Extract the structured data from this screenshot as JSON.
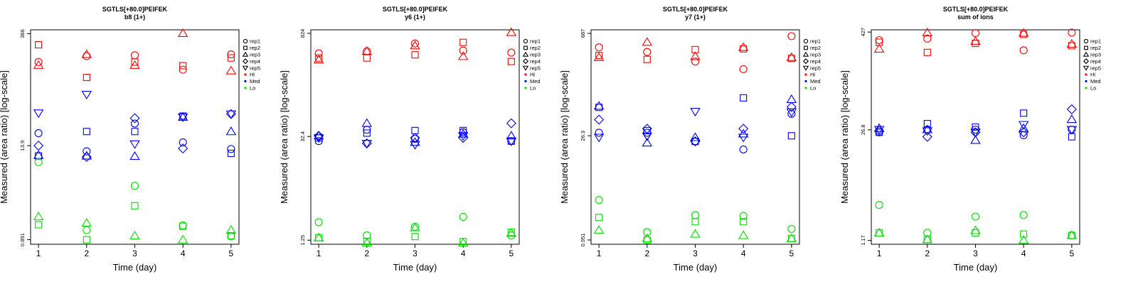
{
  "legend": {
    "shapes": [
      {
        "name": "rep1",
        "symbol": "circle"
      },
      {
        "name": "rep2",
        "symbol": "square"
      },
      {
        "name": "rep3",
        "symbol": "triangle-up"
      },
      {
        "name": "rep4",
        "symbol": "diamond"
      },
      {
        "name": "rep5",
        "symbol": "triangle-down"
      }
    ],
    "groups": [
      {
        "name": "Hi",
        "color": "#ff0000"
      },
      {
        "name": "Med",
        "color": "#0000ff"
      },
      {
        "name": "Lo",
        "color": "#00dd00"
      }
    ]
  },
  "chart_data": [
    {
      "type": "scatter",
      "title": "SGTLS[+80.0]PEIFEK",
      "subtitle": "b8 (1+)",
      "xlabel": "Time (day)",
      "ylabel": "Measured (area ratio) [log-scale]",
      "x_ticks": [
        1,
        2,
        3,
        4,
        5
      ],
      "y_scale": "log",
      "y_ticks": [
        0.891,
        13.9,
        366
      ],
      "y_tick_labels": [
        "0.891",
        "13.9",
        "366"
      ],
      "ylim": [
        0.78,
        410
      ],
      "legend_position": "right",
      "series": [
        {
          "group": "Hi",
          "shape": "rep1",
          "x": [
            1,
            2,
            3,
            4,
            5
          ],
          "y": [
            160,
            190,
            195,
            128,
            200
          ]
        },
        {
          "group": "Hi",
          "shape": "rep2",
          "x": [
            1,
            2,
            3,
            4,
            5
          ],
          "y": [
            265,
            102,
            160,
            144,
            180
          ]
        },
        {
          "group": "Hi",
          "shape": "rep3",
          "x": [
            1,
            2,
            3,
            4,
            5
          ],
          "y": [
            146,
            200,
            146,
            370,
            124
          ]
        },
        {
          "group": "Med",
          "shape": "rep1",
          "x": [
            1,
            2,
            3,
            4,
            5
          ],
          "y": [
            20,
            11.8,
            26.5,
            15.3,
            12.6
          ]
        },
        {
          "group": "Med",
          "shape": "rep2",
          "x": [
            1,
            2,
            3,
            4,
            5
          ],
          "y": [
            10.3,
            21,
            21,
            33,
            11.1
          ]
        },
        {
          "group": "Med",
          "shape": "rep3",
          "x": [
            1,
            2,
            3,
            4,
            5
          ],
          "y": [
            10.5,
            10.3,
            10.2,
            32,
            21
          ]
        },
        {
          "group": "Med",
          "shape": "rep4",
          "x": [
            1,
            2,
            3,
            4,
            5
          ],
          "y": [
            13.9,
            10.0,
            31,
            12.8,
            35
          ]
        },
        {
          "group": "Med",
          "shape": "rep5",
          "x": [
            1,
            2,
            3,
            4,
            5
          ],
          "y": [
            36,
            62,
            14.6,
            32,
            35
          ]
        },
        {
          "group": "Lo",
          "shape": "rep1",
          "x": [
            1,
            2,
            3,
            4,
            5
          ],
          "y": [
            8.6,
            1.18,
            4.3,
            1.35,
            0.98
          ]
        },
        {
          "group": "Lo",
          "shape": "rep2",
          "x": [
            1,
            2,
            3,
            4,
            5
          ],
          "y": [
            1.38,
            0.89,
            2.4,
            1.32,
            1.0
          ]
        },
        {
          "group": "Lo",
          "shape": "rep3",
          "x": [
            1,
            2,
            3,
            4,
            5
          ],
          "y": [
            1.75,
            1.45,
            1.0,
            0.89,
            1.18
          ]
        }
      ]
    },
    {
      "type": "scatter",
      "title": "SGTLS[+80.0]PEIFEK",
      "subtitle": "y6 (1+)",
      "xlabel": "Time (day)",
      "ylabel": "Measured (area ratio) [log-scale]",
      "x_ticks": [
        1,
        2,
        3,
        4,
        5
      ],
      "y_scale": "log",
      "y_ticks": [
        1.25,
        32.4,
        824
      ],
      "y_tick_labels": [
        "1.25",
        "32.4",
        "824"
      ],
      "ylim": [
        1.1,
        920
      ],
      "legend_position": "right",
      "series": [
        {
          "group": "Hi",
          "shape": "rep1",
          "x": [
            1,
            2,
            3,
            4,
            5
          ],
          "y": [
            440,
            470,
            600,
            480,
            450
          ]
        },
        {
          "group": "Hi",
          "shape": "rep2",
          "x": [
            1,
            2,
            3,
            4,
            5
          ],
          "y": [
            380,
            380,
            420,
            620,
            340
          ]
        },
        {
          "group": "Hi",
          "shape": "rep3",
          "x": [
            1,
            2,
            3,
            4,
            5
          ],
          "y": [
            360,
            470,
            560,
            400,
            850
          ]
        },
        {
          "group": "Med",
          "shape": "rep1",
          "x": [
            1,
            2,
            3,
            4,
            5
          ],
          "y": [
            28,
            40,
            30,
            37,
            28
          ]
        },
        {
          "group": "Med",
          "shape": "rep2",
          "x": [
            1,
            2,
            3,
            4,
            5
          ],
          "y": [
            31,
            36,
            39,
            39,
            28
          ]
        },
        {
          "group": "Med",
          "shape": "rep3",
          "x": [
            1,
            2,
            3,
            4,
            5
          ],
          "y": [
            33,
            49,
            27,
            35,
            33
          ]
        },
        {
          "group": "Med",
          "shape": "rep4",
          "x": [
            1,
            2,
            3,
            4,
            5
          ],
          "y": [
            33,
            26,
            31,
            31,
            49
          ]
        },
        {
          "group": "Med",
          "shape": "rep5",
          "x": [
            1,
            2,
            3,
            4,
            5
          ],
          "y": [
            31,
            26,
            25,
            33,
            28
          ]
        },
        {
          "group": "Lo",
          "shape": "rep1",
          "x": [
            1,
            2,
            3,
            4,
            5
          ],
          "y": [
            2.2,
            1.45,
            1.9,
            2.6,
            1.45
          ]
        },
        {
          "group": "Lo",
          "shape": "rep2",
          "x": [
            1,
            2,
            3,
            4,
            5
          ],
          "y": [
            1.35,
            1.2,
            1.4,
            1.2,
            1.6
          ]
        },
        {
          "group": "Lo",
          "shape": "rep3",
          "x": [
            1,
            2,
            3,
            4,
            5
          ],
          "y": [
            1.35,
            1.15,
            1.85,
            1.15,
            1.55
          ]
        }
      ]
    },
    {
      "type": "scatter",
      "title": "SGTLS[+80.0]PEIFEK",
      "subtitle": "y7 (1+)",
      "xlabel": "Time (day)",
      "ylabel": "Measured (area ratio) [log-scale]",
      "x_ticks": [
        1,
        2,
        3,
        4,
        5
      ],
      "y_scale": "log",
      "y_ticks": [
        0.951,
        26.3,
        687
      ],
      "y_tick_labels": [
        "0.951",
        "26.3",
        "687"
      ],
      "ylim": [
        0.83,
        770
      ],
      "legend_position": "right",
      "series": [
        {
          "group": "Hi",
          "shape": "rep1",
          "x": [
            1,
            2,
            3,
            4,
            5
          ],
          "y": [
            440,
            380,
            280,
            220,
            630
          ]
        },
        {
          "group": "Hi",
          "shape": "rep2",
          "x": [
            1,
            2,
            3,
            4,
            5
          ],
          "y": [
            340,
            300,
            410,
            420,
            310
          ]
        },
        {
          "group": "Hi",
          "shape": "rep3",
          "x": [
            1,
            2,
            3,
            4,
            5
          ],
          "y": [
            320,
            520,
            330,
            440,
            320
          ]
        },
        {
          "group": "Med",
          "shape": "rep1",
          "x": [
            1,
            2,
            3,
            4,
            5
          ],
          "y": [
            29,
            29,
            22,
            17,
            53
          ]
        },
        {
          "group": "Med",
          "shape": "rep2",
          "x": [
            1,
            2,
            3,
            4,
            5
          ],
          "y": [
            65,
            31,
            22,
            88,
            26.3
          ]
        },
        {
          "group": "Med",
          "shape": "rep3",
          "x": [
            1,
            2,
            3,
            4,
            5
          ],
          "y": [
            68,
            21,
            25,
            28,
            84
          ]
        },
        {
          "group": "Med",
          "shape": "rep4",
          "x": [
            1,
            2,
            3,
            4,
            5
          ],
          "y": [
            44,
            33,
            22,
            33,
            66
          ]
        },
        {
          "group": "Med",
          "shape": "rep5",
          "x": [
            1,
            2,
            3,
            4,
            5
          ],
          "y": [
            25,
            26,
            57,
            25,
            56
          ]
        },
        {
          "group": "Lo",
          "shape": "rep1",
          "x": [
            1,
            2,
            3,
            4,
            5
          ],
          "y": [
            3.4,
            1.22,
            2.1,
            2.05,
            1.35
          ]
        },
        {
          "group": "Lo",
          "shape": "rep2",
          "x": [
            1,
            2,
            3,
            4,
            5
          ],
          "y": [
            1.95,
            0.95,
            1.7,
            1.7,
            1.0
          ]
        },
        {
          "group": "Lo",
          "shape": "rep3",
          "x": [
            1,
            2,
            3,
            4,
            5
          ],
          "y": [
            1.3,
            1.0,
            1.15,
            1.1,
            1.0
          ]
        }
      ]
    },
    {
      "type": "scatter",
      "title": "SGTLS[+80.0]PEIFEK",
      "subtitle": "sum of ions",
      "xlabel": "Time (day)",
      "ylabel": "Measured (area ratio) [log-scale]",
      "x_ticks": [
        1,
        2,
        3,
        4,
        5
      ],
      "y_scale": "log",
      "y_ticks": [
        1.17,
        26.8,
        427
      ],
      "y_tick_labels": [
        "1.17",
        "26.8",
        "427"
      ],
      "ylim": [
        1.05,
        455
      ],
      "legend_position": "right",
      "series": [
        {
          "group": "Hi",
          "shape": "rep1",
          "x": [
            1,
            2,
            3,
            4,
            5
          ],
          "y": [
            340,
            355,
            415,
            255,
            420
          ]
        },
        {
          "group": "Hi",
          "shape": "rep2",
          "x": [
            1,
            2,
            3,
            4,
            5
          ],
          "y": [
            320,
            240,
            310,
            400,
            290
          ]
        },
        {
          "group": "Hi",
          "shape": "rep3",
          "x": [
            1,
            2,
            3,
            4,
            5
          ],
          "y": [
            265,
            420,
            330,
            415,
            305
          ]
        },
        {
          "group": "Med",
          "shape": "rep1",
          "x": [
            1,
            2,
            3,
            4,
            5
          ],
          "y": [
            25,
            27,
            27,
            23,
            27
          ]
        },
        {
          "group": "Med",
          "shape": "rep2",
          "x": [
            1,
            2,
            3,
            4,
            5
          ],
          "y": [
            25,
            32,
            29,
            43,
            22
          ]
        },
        {
          "group": "Med",
          "shape": "rep3",
          "x": [
            1,
            2,
            3,
            4,
            5
          ],
          "y": [
            28,
            27,
            20,
            28,
            36
          ]
        },
        {
          "group": "Med",
          "shape": "rep4",
          "x": [
            1,
            2,
            3,
            4,
            5
          ],
          "y": [
            26,
            22,
            25,
            25,
            48
          ]
        },
        {
          "group": "Med",
          "shape": "rep5",
          "x": [
            1,
            2,
            3,
            4,
            5
          ],
          "y": [
            27,
            26,
            25,
            31,
            27
          ]
        },
        {
          "group": "Lo",
          "shape": "rep1",
          "x": [
            1,
            2,
            3,
            4,
            5
          ],
          "y": [
            3.2,
            1.45,
            2.3,
            2.4,
            1.35
          ]
        },
        {
          "group": "Lo",
          "shape": "rep2",
          "x": [
            1,
            2,
            3,
            4,
            5
          ],
          "y": [
            1.45,
            1.2,
            1.45,
            1.4,
            1.35
          ]
        },
        {
          "group": "Lo",
          "shape": "rep3",
          "x": [
            1,
            2,
            3,
            4,
            5
          ],
          "y": [
            1.45,
            1.2,
            1.55,
            1.18,
            1.35
          ]
        }
      ]
    }
  ]
}
